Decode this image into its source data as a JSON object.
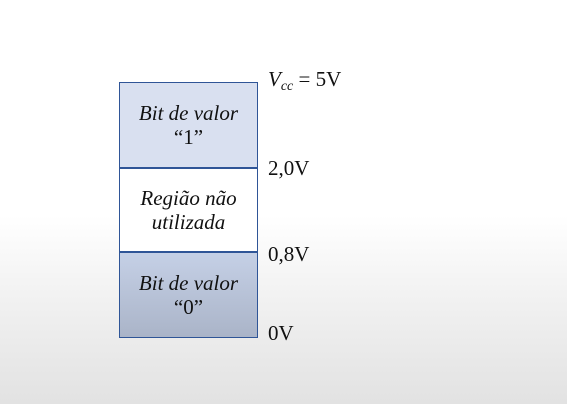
{
  "regions": {
    "high": {
      "title": "Bit de valor",
      "value": "“1”"
    },
    "middle": {
      "line1": "Região não",
      "line2": "utilizada"
    },
    "low": {
      "title": "Bit de valor",
      "value": "“0”"
    }
  },
  "levels": {
    "vcc_symbol": "V",
    "vcc_subscript": "cc",
    "vcc_value": " = 5V",
    "high_threshold": "2,0V",
    "low_threshold": "0,8V",
    "ground": "0V"
  },
  "colors": {
    "border": "#2f5597",
    "high_fill": "#d9e0f0",
    "low_fill": "#b7c1d7"
  }
}
